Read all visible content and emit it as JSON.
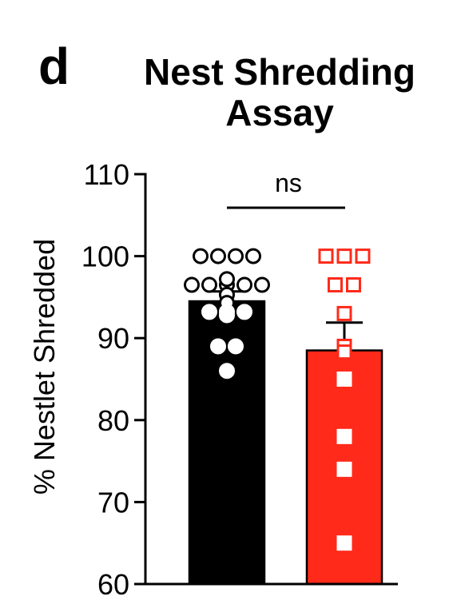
{
  "panel_letter": "d",
  "chart_data": {
    "type": "bar",
    "title_lines": [
      "Nest Shredding",
      "Assay"
    ],
    "xlabel": "",
    "ylabel": "% Nestlet Shredded",
    "ylim": [
      60,
      110
    ],
    "yticks": [
      60,
      70,
      80,
      90,
      100,
      110
    ],
    "grid": false,
    "legend": "none",
    "significance": "ns",
    "colors": {
      "axis": "#000000",
      "group1": "#000000",
      "group2": "#ff2a1a",
      "marker_fill": "#ffffff"
    },
    "series": [
      {
        "mean": 94.5,
        "sem": 1.2,
        "bar_color": "#000000",
        "marker": "circle",
        "points": [
          100,
          100,
          100,
          100,
          96.5,
          96.5,
          96.5,
          96.5,
          96.5,
          97.2,
          95.3,
          94.3,
          93.2,
          93.2,
          93.2,
          92.8,
          89,
          89,
          86
        ]
      },
      {
        "mean": 88.5,
        "sem": 3.4,
        "bar_color": "#ff2a1a",
        "marker": "square",
        "points": [
          100,
          100,
          100,
          96.5,
          96.5,
          93,
          89,
          88.3,
          85,
          78,
          74,
          65
        ]
      }
    ]
  }
}
